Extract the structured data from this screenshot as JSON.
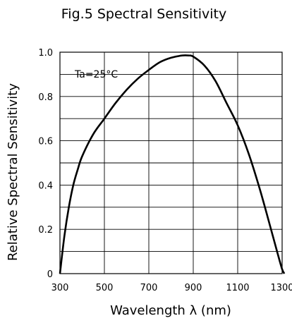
{
  "chart_data": {
    "type": "line",
    "title": "Fig.5 Spectral Sensitivity",
    "xlabel": "Wavelength  λ  (nm)",
    "ylabel": "Relative Spectral Sensitivity",
    "annotation": "Ta=25°C",
    "xlim": [
      300,
      1300
    ],
    "ylim": [
      0,
      1.0
    ],
    "x_ticks": [
      300,
      500,
      700,
      900,
      1100,
      1300
    ],
    "x_tick_labels": [
      "300",
      "500",
      "700",
      "900",
      "1100",
      "1300"
    ],
    "y_ticks": [
      0,
      0.2,
      0.4,
      0.6,
      0.8,
      1.0
    ],
    "y_tick_labels": [
      "0",
      "0.2",
      "0.4",
      "0.6",
      "0.8",
      "1.0"
    ],
    "grid": true,
    "x_grid": [
      300,
      500,
      700,
      900,
      1100,
      1300
    ],
    "y_grid": [
      0,
      0.1,
      0.2,
      0.3,
      0.4,
      0.5,
      0.6,
      0.7,
      0.8,
      0.9,
      1.0
    ],
    "series": [
      {
        "x": [
          300,
          320,
          340,
          360,
          380,
          400,
          450,
          500,
          550,
          600,
          650,
          700,
          750,
          800,
          850,
          880,
          900,
          950,
          1000,
          1050,
          1100,
          1150,
          1200,
          1250,
          1280,
          1300,
          1310
        ],
        "y": [
          0.0,
          0.17,
          0.3,
          0.4,
          0.47,
          0.53,
          0.63,
          0.7,
          0.77,
          0.83,
          0.88,
          0.92,
          0.955,
          0.975,
          0.985,
          0.985,
          0.98,
          0.94,
          0.87,
          0.77,
          0.67,
          0.54,
          0.38,
          0.2,
          0.09,
          0.02,
          0.0
        ]
      }
    ],
    "colors": {
      "line": "#000000",
      "grid": "#000000",
      "background": "#ffffff"
    }
  }
}
